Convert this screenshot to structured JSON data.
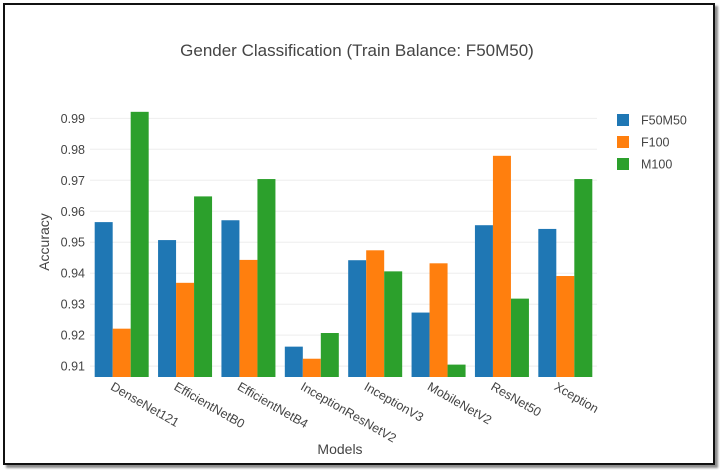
{
  "chart_data": {
    "type": "bar",
    "title": "Gender Classification (Train Balance: F50M50)",
    "xlabel": "Models",
    "ylabel": "Accuracy",
    "ylim": [
      0.9065,
      0.9985
    ],
    "yticks": [
      "0.91",
      "0.92",
      "0.93",
      "0.94",
      "0.95",
      "0.96",
      "0.97",
      "0.98",
      "0.99"
    ],
    "grid": true,
    "legend_position": "top-right",
    "categories": [
      "DenseNet121",
      "EfficientNetB0",
      "EfficientNetB4",
      "InceptionResNetV2",
      "InceptionV3",
      "MobileNetV2",
      "ResNet50",
      "Xception"
    ],
    "series": [
      {
        "name": "F50M50",
        "color": "#1f77b4",
        "values": [
          0.9565,
          0.9507,
          0.9571,
          0.9163,
          0.9442,
          0.9273,
          0.9555,
          0.9543
        ]
      },
      {
        "name": "F100",
        "color": "#ff7f0e",
        "values": [
          0.9221,
          0.9369,
          0.9443,
          0.9124,
          0.9474,
          0.9432,
          0.9779,
          0.9391
        ]
      },
      {
        "name": "M100",
        "color": "#2ca02c",
        "values": [
          0.9921,
          0.9648,
          0.9704,
          0.9207,
          0.9406,
          0.9105,
          0.9318,
          0.9704
        ]
      }
    ]
  }
}
